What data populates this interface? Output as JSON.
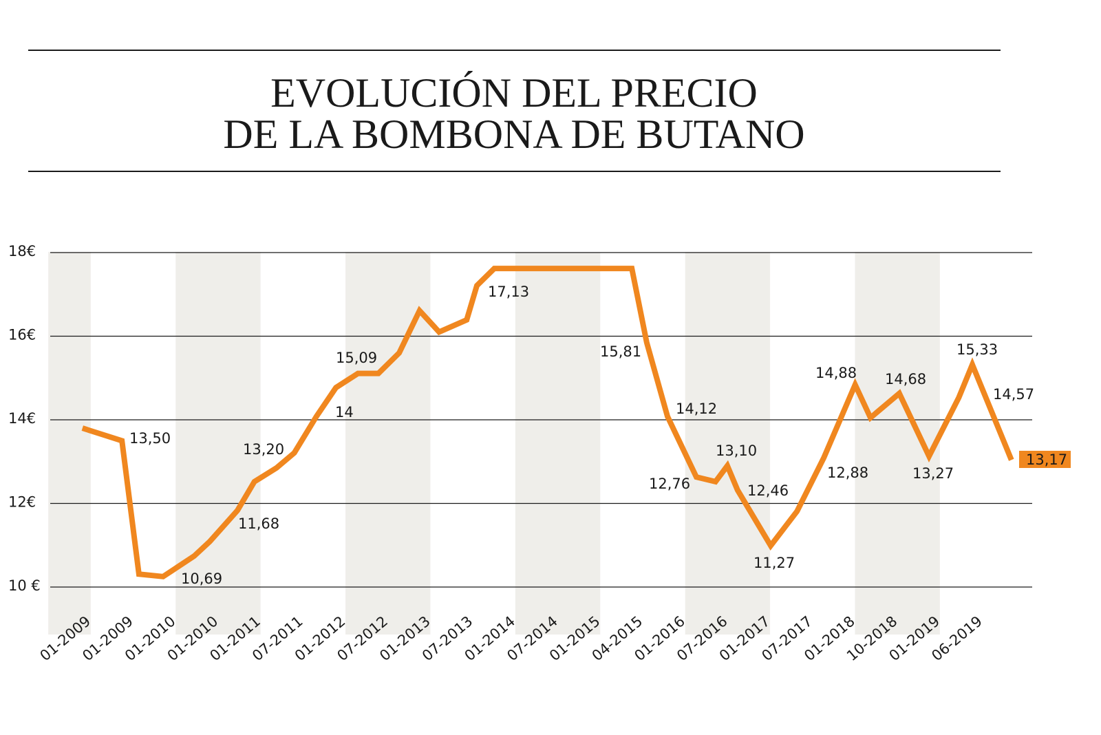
{
  "chart_data": {
    "type": "line",
    "title": [
      "EVOLUCIÓN DEL PRECIO",
      "DE LA BOMBONA DE BUTANO"
    ],
    "categories": [
      "01-2009",
      "01-2009",
      "01-2010",
      "01-2010",
      "01-2011",
      "07-2011",
      "01-2012",
      "07-2012",
      "01-2013",
      "07-2013",
      "01-2014",
      "07-2014",
      "01-2015",
      "04-2015",
      "01-2016",
      "07-2016",
      "01-2017",
      "07-2017",
      "01-2018",
      "10-2018",
      "01-2019",
      "06-2019"
    ],
    "y_ticks": [
      {
        "value": 18,
        "label": "18€"
      },
      {
        "value": 16,
        "label": "16€"
      },
      {
        "value": 14,
        "label": "14€"
      },
      {
        "value": 12,
        "label": "12€"
      },
      {
        "value": 10,
        "label": "10 €"
      }
    ],
    "ylim": [
      9,
      18
    ],
    "grid": "horizontal",
    "line_color": "#f0871f",
    "band_color": "#efeeea",
    "series": [
      {
        "points": [
          [
            0.24,
            13.8
          ],
          [
            1.17,
            13.5
          ],
          [
            1.57,
            10.31
          ],
          [
            2.14,
            10.25
          ],
          [
            2.87,
            10.74
          ],
          [
            3.24,
            11.09
          ],
          [
            3.89,
            11.83
          ],
          [
            4.29,
            12.52
          ],
          [
            4.81,
            12.85
          ],
          [
            5.23,
            13.21
          ],
          [
            5.75,
            14.08
          ],
          [
            6.21,
            14.77
          ],
          [
            6.73,
            15.11
          ],
          [
            7.21,
            15.11
          ],
          [
            7.7,
            15.6
          ],
          [
            8.18,
            16.61
          ],
          [
            8.64,
            16.1
          ],
          [
            9.29,
            16.39
          ],
          [
            9.53,
            17.21
          ],
          [
            9.94,
            17.62
          ],
          [
            13.18,
            17.62
          ],
          [
            13.53,
            15.85
          ],
          [
            14.02,
            14.08
          ],
          [
            14.7,
            12.63
          ],
          [
            15.15,
            12.52
          ],
          [
            15.43,
            12.9
          ],
          [
            15.67,
            12.32
          ],
          [
            16.45,
            10.99
          ],
          [
            17.07,
            11.81
          ],
          [
            17.7,
            13.09
          ],
          [
            18.44,
            14.84
          ],
          [
            18.8,
            14.05
          ],
          [
            19.48,
            14.63
          ],
          [
            20.18,
            13.13
          ],
          [
            20.88,
            14.53
          ],
          [
            21.2,
            15.32
          ],
          [
            22.12,
            13.04
          ]
        ]
      }
    ],
    "data_labels": [
      "13,50",
      "10,69",
      "11,68",
      "13,20",
      "14",
      "15,09",
      "17,13",
      "15,81",
      "14,12",
      "12,76",
      "13,10",
      "12,46",
      "11,27",
      "14,88",
      "12,88",
      "14,68",
      "13,27",
      "15,33",
      "14,57",
      "13,17"
    ],
    "highlighted_label": "13,17"
  }
}
